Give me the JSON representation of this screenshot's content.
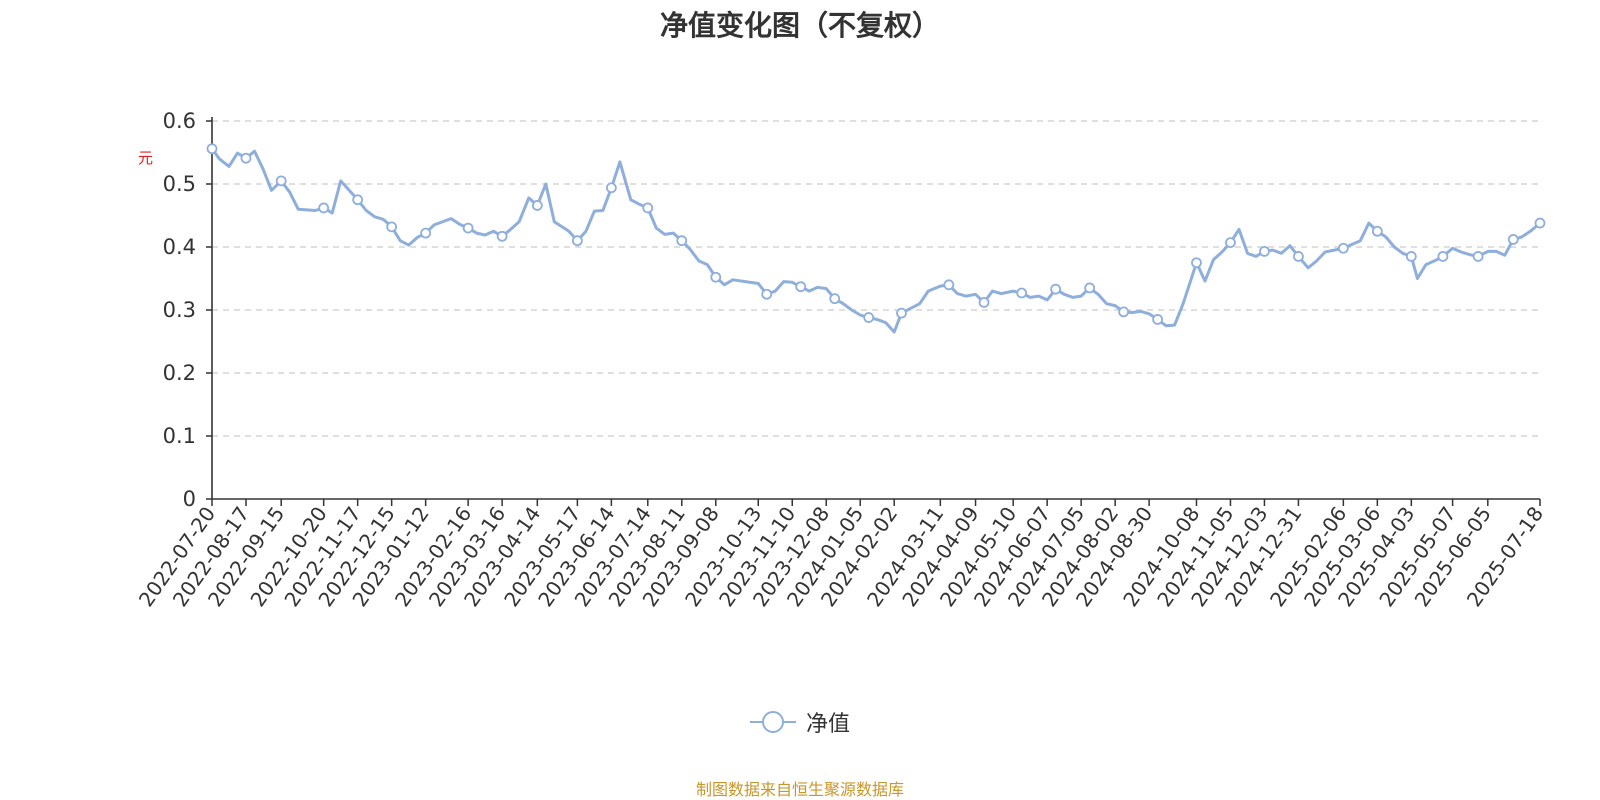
{
  "title": "净值变化图（不复权）",
  "source": "制图数据来自恒生聚源数据库",
  "legend": {
    "label": "净值",
    "icon": "circle-line-icon",
    "color": "#8eaedb"
  },
  "colors": {
    "line": "#8eaedb",
    "grid": "#cccccc",
    "axis": "#333333",
    "unit": "#e02020",
    "source": "#c8962a"
  },
  "chart_data": {
    "type": "line",
    "title": "净值变化图（不复权）",
    "ylabel": "元",
    "ylim": [
      0,
      0.6
    ],
    "yticks": [
      "0",
      "0.1",
      "0.2",
      "0.3",
      "0.4",
      "0.5",
      "0.6"
    ],
    "grid": "horizontal-dashed",
    "legend_position": "bottom-center",
    "x_tick_labels": [
      "2022-07-20",
      "2022-08-17",
      "2022-09-15",
      "2022-10-20",
      "2022-11-17",
      "2022-12-15",
      "2023-01-12",
      "2023-02-16",
      "2023-03-16",
      "2023-04-14",
      "2023-05-17",
      "2023-06-14",
      "2023-07-14",
      "2023-08-11",
      "2023-09-08",
      "2023-10-13",
      "2023-11-10",
      "2023-12-08",
      "2024-01-05",
      "2024-02-02",
      "2024-03-11",
      "2024-04-09",
      "2024-05-10",
      "2024-06-07",
      "2024-07-05",
      "2024-08-02",
      "2024-08-30",
      "2024-10-08",
      "2024-11-05",
      "2024-12-03",
      "2024-12-31",
      "2025-02-06",
      "2025-03-06",
      "2025-04-03",
      "2025-05-07",
      "2025-06-05",
      "2025-07-18"
    ],
    "series": [
      {
        "name": "净值",
        "x": [
          "2022-07-20",
          "2022-07-26",
          "2022-08-03",
          "2022-08-10",
          "2022-08-17",
          "2022-08-24",
          "2022-08-31",
          "2022-09-07",
          "2022-09-15",
          "2022-09-22",
          "2022-09-29",
          "2022-10-13",
          "2022-10-20",
          "2022-10-27",
          "2022-11-03",
          "2022-11-10",
          "2022-11-17",
          "2022-11-24",
          "2022-12-01",
          "2022-12-08",
          "2022-12-15",
          "2022-12-22",
          "2022-12-29",
          "2023-01-05",
          "2023-01-12",
          "2023-01-19",
          "2023-02-02",
          "2023-02-09",
          "2023-02-16",
          "2023-02-23",
          "2023-03-02",
          "2023-03-09",
          "2023-03-16",
          "2023-03-23",
          "2023-03-30",
          "2023-04-07",
          "2023-04-14",
          "2023-04-21",
          "2023-04-28",
          "2023-05-10",
          "2023-05-17",
          "2023-05-24",
          "2023-05-31",
          "2023-06-07",
          "2023-06-14",
          "2023-06-21",
          "2023-06-30",
          "2023-07-07",
          "2023-07-14",
          "2023-07-21",
          "2023-07-28",
          "2023-08-04",
          "2023-08-11",
          "2023-08-18",
          "2023-08-25",
          "2023-09-01",
          "2023-09-08",
          "2023-09-15",
          "2023-09-22",
          "2023-10-13",
          "2023-10-20",
          "2023-10-27",
          "2023-11-03",
          "2023-11-10",
          "2023-11-17",
          "2023-11-24",
          "2023-12-01",
          "2023-12-08",
          "2023-12-15",
          "2023-12-22",
          "2023-12-29",
          "2024-01-05",
          "2024-01-12",
          "2024-01-19",
          "2024-01-26",
          "2024-02-02",
          "2024-02-08",
          "2024-02-23",
          "2024-03-01",
          "2024-03-11",
          "2024-03-18",
          "2024-03-25",
          "2024-04-01",
          "2024-04-09",
          "2024-04-16",
          "2024-04-23",
          "2024-04-30",
          "2024-05-10",
          "2024-05-17",
          "2024-05-24",
          "2024-05-31",
          "2024-06-07",
          "2024-06-14",
          "2024-06-21",
          "2024-06-28",
          "2024-07-05",
          "2024-07-12",
          "2024-07-19",
          "2024-07-26",
          "2024-08-02",
          "2024-08-09",
          "2024-08-16",
          "2024-08-23",
          "2024-08-30",
          "2024-09-06",
          "2024-09-13",
          "2024-09-20",
          "2024-09-27",
          "2024-10-08",
          "2024-10-15",
          "2024-10-22",
          "2024-10-29",
          "2024-11-05",
          "2024-11-12",
          "2024-11-19",
          "2024-11-26",
          "2024-12-03",
          "2024-12-10",
          "2024-12-17",
          "2024-12-24",
          "2024-12-31",
          "2025-01-08",
          "2025-01-15",
          "2025-01-22",
          "2025-02-06",
          "2025-02-13",
          "2025-02-20",
          "2025-02-27",
          "2025-03-06",
          "2025-03-13",
          "2025-03-20",
          "2025-03-27",
          "2025-04-03",
          "2025-04-08",
          "2025-04-15",
          "2025-04-22",
          "2025-04-29",
          "2025-05-07",
          "2025-05-14",
          "2025-05-21",
          "2025-05-28",
          "2025-06-05",
          "2025-06-12",
          "2025-06-19",
          "2025-06-26",
          "2025-07-03",
          "2025-07-10",
          "2025-07-18"
        ],
        "values": [
          0.556,
          0.54,
          0.528,
          0.549,
          0.541,
          0.552,
          0.524,
          0.49,
          0.505,
          0.487,
          0.46,
          0.458,
          0.462,
          0.454,
          0.505,
          0.49,
          0.475,
          0.458,
          0.448,
          0.444,
          0.432,
          0.41,
          0.403,
          0.415,
          0.422,
          0.435,
          0.445,
          0.436,
          0.43,
          0.422,
          0.419,
          0.425,
          0.417,
          0.428,
          0.44,
          0.478,
          0.466,
          0.5,
          0.44,
          0.425,
          0.41,
          0.425,
          0.457,
          0.458,
          0.494,
          0.535,
          0.475,
          0.468,
          0.462,
          0.43,
          0.42,
          0.422,
          0.41,
          0.396,
          0.378,
          0.372,
          0.352,
          0.34,
          0.348,
          0.342,
          0.325,
          0.33,
          0.345,
          0.344,
          0.337,
          0.33,
          0.336,
          0.334,
          0.318,
          0.31,
          0.3,
          0.292,
          0.288,
          0.285,
          0.28,
          0.265,
          0.295,
          0.31,
          0.33,
          0.338,
          0.34,
          0.326,
          0.322,
          0.325,
          0.312,
          0.33,
          0.326,
          0.33,
          0.327,
          0.32,
          0.322,
          0.316,
          0.333,
          0.325,
          0.32,
          0.322,
          0.335,
          0.325,
          0.31,
          0.307,
          0.297,
          0.296,
          0.298,
          0.294,
          0.285,
          0.275,
          0.276,
          0.31,
          0.375,
          0.346,
          0.38,
          0.392,
          0.407,
          0.428,
          0.39,
          0.385,
          0.393,
          0.395,
          0.39,
          0.402,
          0.385,
          0.367,
          0.378,
          0.392,
          0.398,
          0.404,
          0.41,
          0.438,
          0.425,
          0.416,
          0.4,
          0.39,
          0.385,
          0.35,
          0.372,
          0.378,
          0.385,
          0.398,
          0.392,
          0.388,
          0.385,
          0.393,
          0.393,
          0.387,
          0.412,
          0.416,
          0.425,
          0.438
        ]
      }
    ]
  }
}
